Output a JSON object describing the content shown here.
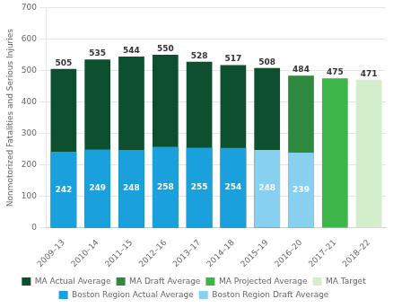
{
  "chart_data": {
    "type": "bar",
    "categories": [
      "2009–13",
      "2010–14",
      "2011–15",
      "2012–16",
      "2013–17",
      "2014–18",
      "2015–19",
      "2016–20",
      "2017–21",
      "2018–22"
    ],
    "series": [
      {
        "name": "MA Actual Average",
        "color": "#0d4f2e",
        "values": [
          505,
          535,
          544,
          550,
          528,
          517,
          508,
          null,
          null,
          null
        ]
      },
      {
        "name": "MA Draft Average",
        "color": "#2d8a3e",
        "values": [
          null,
          null,
          null,
          null,
          null,
          null,
          null,
          484,
          null,
          null
        ]
      },
      {
        "name": "MA Projected Average",
        "color": "#3eb549",
        "values": [
          null,
          null,
          null,
          null,
          null,
          null,
          null,
          null,
          475,
          null
        ]
      },
      {
        "name": "MA Target",
        "color": "#d4eecc",
        "values": [
          null,
          null,
          null,
          null,
          null,
          null,
          null,
          null,
          null,
          471
        ]
      },
      {
        "name": "Boston Region Actual Average",
        "color": "#1aa0dc",
        "values": [
          242,
          249,
          248,
          258,
          255,
          254,
          null,
          null,
          null,
          null
        ]
      },
      {
        "name": "Boston Region Draft Average",
        "color": "#88d0f0",
        "values": [
          null,
          null,
          null,
          null,
          null,
          null,
          248,
          239,
          null,
          null
        ]
      }
    ],
    "ylabel": "Nonmotorized Fatalities and Serious Injuries",
    "ylim": [
      0,
      700
    ],
    "yticks": [
      0,
      100,
      200,
      300,
      400,
      500,
      600,
      700
    ],
    "grid": true,
    "legend": "bottom",
    "data_labels": true
  }
}
